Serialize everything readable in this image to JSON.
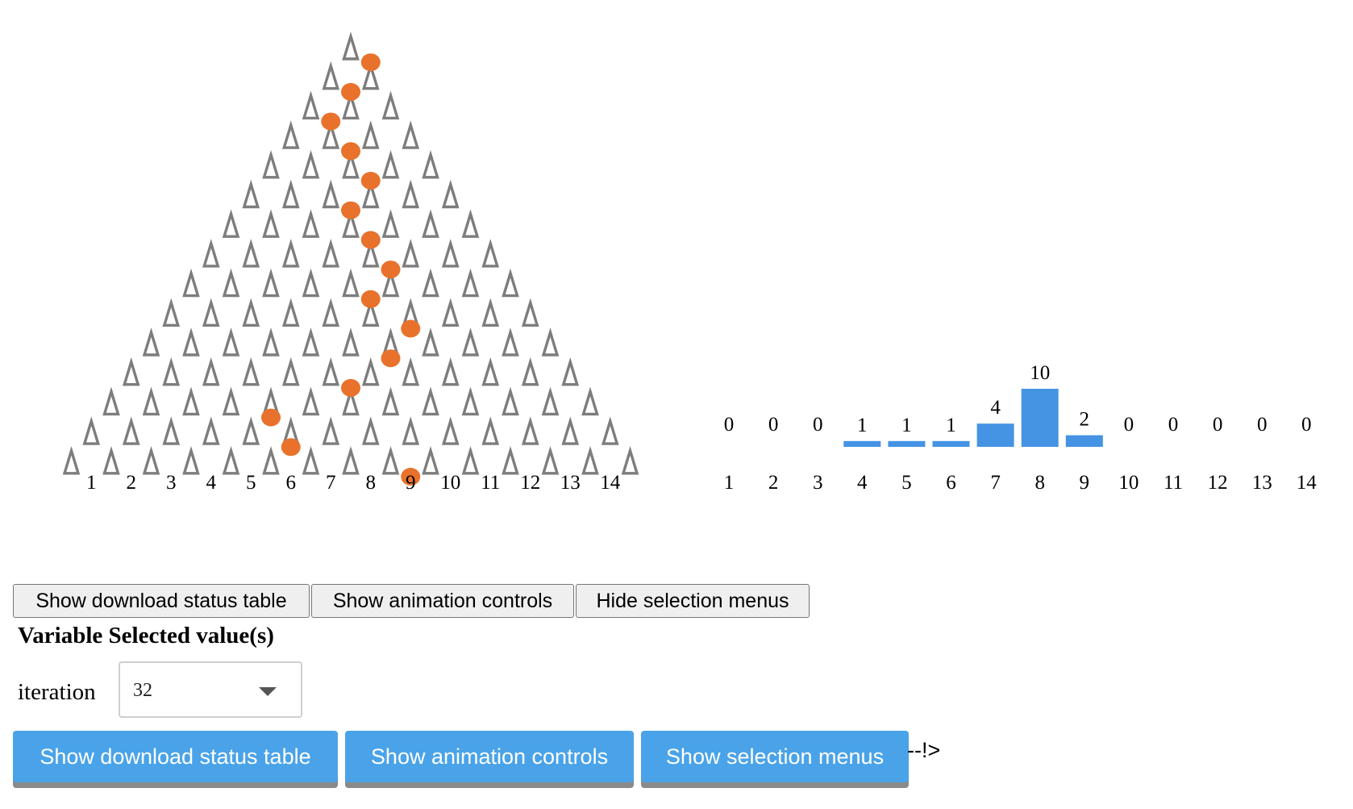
{
  "chart_data": {
    "type": "bar",
    "categories": [
      "1",
      "2",
      "3",
      "4",
      "5",
      "6",
      "7",
      "8",
      "9",
      "10",
      "11",
      "12",
      "13",
      "14"
    ],
    "values": [
      0,
      0,
      0,
      1,
      1,
      1,
      4,
      10,
      2,
      0,
      0,
      0,
      0,
      0
    ],
    "colors": {
      "bar": "#4593e3",
      "peg": "#7d7d7d",
      "ball": "#e8722c"
    },
    "peg_rows": 15,
    "ball_path_bins": [
      8,
      7.5,
      7,
      7.5,
      8,
      7.5,
      8,
      8.5,
      8,
      9,
      8.5,
      7.5,
      5.5,
      6,
      9
    ],
    "title": "",
    "xlabel": "",
    "ylabel": ""
  },
  "controls": {
    "top_buttons": [
      "Show download status table",
      "Show animation controls",
      "Hide selection menus"
    ],
    "heading": "Variable Selected value(s)",
    "select_label": "iteration",
    "select_value": "32",
    "bottom_buttons": [
      "Show download status table",
      "Show animation controls",
      "Show selection menus"
    ],
    "trailing_text": "--!>"
  }
}
